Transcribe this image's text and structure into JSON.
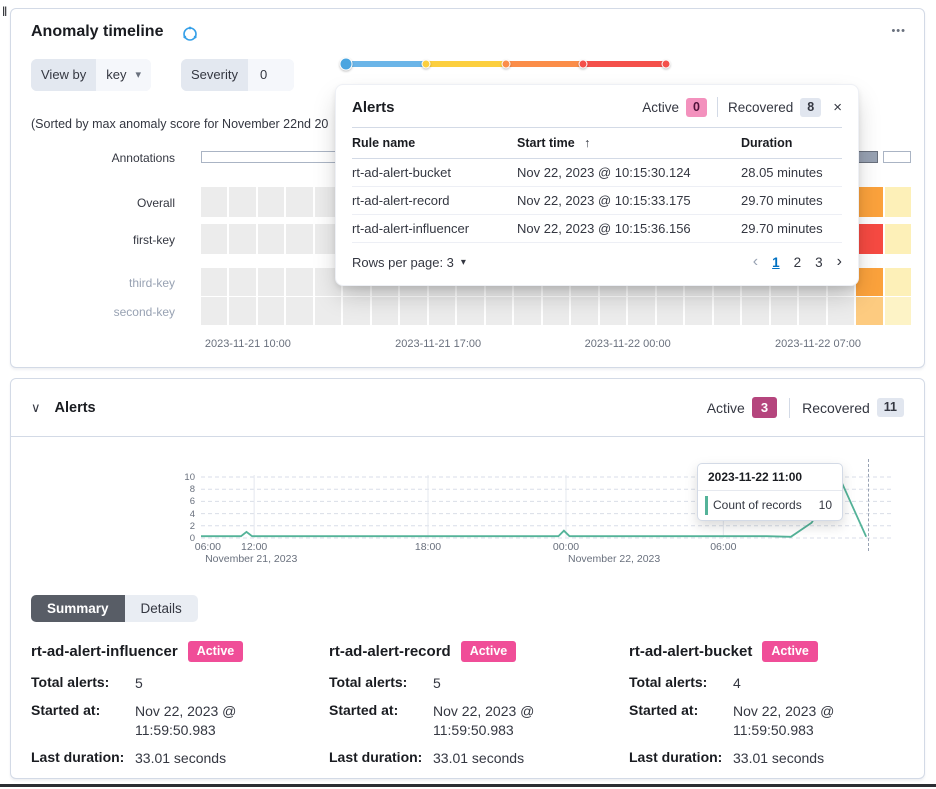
{
  "artifact": {
    "top_left_mark": "‖"
  },
  "colors": {
    "accent_badge": "#f04e98",
    "active_badge_dark": "#b5457d",
    "recovered_badge": "#e1e6ef",
    "link_blue": "#0071c2",
    "line_green": "#54b399",
    "marker_green": "#149177",
    "panel_border": "#d3dae6"
  },
  "icons": {
    "ellipsis": "•••",
    "chevron_down": "▾",
    "collapse_chevron": "∨",
    "close": "×",
    "sort_asc": "↑",
    "page_prev": "‹",
    "page_next": "›"
  },
  "anomaly_panel": {
    "title": "Anomaly timeline",
    "controls": {
      "view_by_label": "View by",
      "view_by_value": "key",
      "severity_label": "Severity",
      "severity_value": "0"
    },
    "sorted_note": "(Sorted by max anomaly score for November 22nd 20",
    "severity_scale": {
      "segments": [
        {
          "color": "#6bb5e8",
          "pct": 25
        },
        {
          "color": "#fccf3e",
          "pct": 25
        },
        {
          "color": "#fb8d49",
          "pct": 24
        },
        {
          "color": "#f4504b",
          "pct": 26
        }
      ],
      "dots": [
        {
          "pct": 0,
          "color": "#4aa5e0",
          "size": 13
        },
        {
          "pct": 25,
          "color": "#fccf3e",
          "size": 9
        },
        {
          "pct": 50,
          "color": "#fb8d49",
          "size": 9
        },
        {
          "pct": 74,
          "color": "#f4504b",
          "size": 9
        },
        {
          "pct": 100,
          "color": "#f4504b",
          "size": 9
        }
      ]
    },
    "swimlane": {
      "empty_cell_color": "#ececec",
      "cells_per_row": 25,
      "annotations_label": "Annotations",
      "annotation_markers": [
        {
          "type": "outline",
          "start": 0,
          "end": 91.5
        },
        {
          "type": "solid",
          "start": 92.3,
          "end": 95.4
        },
        {
          "type": "outline",
          "start": 96,
          "end": 100
        }
      ],
      "rows": [
        {
          "label": "Overall",
          "dim": false,
          "overrides": {
            "23": "#fba23c",
            "24": "#fdf0b8"
          }
        },
        {
          "label": "first-key",
          "dim": false,
          "overrides": {
            "23": "#f64a42",
            "24": "#fdf0b8"
          }
        },
        {
          "label": "third-key",
          "dim": true,
          "overrides": {
            "23": "#fba23c",
            "24": "#fdf0b8"
          }
        },
        {
          "label": "second-key",
          "dim": true,
          "overrides": {
            "23": "#fdcb80",
            "24": "#fdf3c6"
          }
        }
      ],
      "x_axis": [
        {
          "label": "2023-11-21 10:00",
          "pct": 6.6
        },
        {
          "label": "2023-11-21 17:00",
          "pct": 33.4
        },
        {
          "label": "2023-11-22 00:00",
          "pct": 60.1
        },
        {
          "label": "2023-11-22 07:00",
          "pct": 86.9
        }
      ]
    }
  },
  "alerts_popup": {
    "title": "Alerts",
    "active_label": "Active",
    "active_count": "0",
    "recovered_label": "Recovered",
    "recovered_count": "8",
    "table": {
      "headers": [
        "Rule name",
        "Start time",
        "Duration"
      ],
      "rows": [
        [
          "rt-ad-alert-bucket",
          "Nov 22, 2023 @ 10:15:30.124",
          "28.05 minutes"
        ],
        [
          "rt-ad-alert-record",
          "Nov 22, 2023 @ 10:15:33.175",
          "29.70 minutes"
        ],
        [
          "rt-ad-alert-influencer",
          "Nov 22, 2023 @ 10:15:36.156",
          "29.70 minutes"
        ]
      ]
    },
    "rows_per_page": "Rows per page: 3",
    "pagination": {
      "pages": [
        "1",
        "2",
        "3"
      ],
      "active": "1"
    }
  },
  "alerts_panel": {
    "title": "Alerts",
    "active_label": "Active",
    "active_count": "3",
    "recovered_label": "Recovered",
    "recovered_count": "11",
    "tabs": [
      {
        "label": "Summary",
        "active": true
      },
      {
        "label": "Details",
        "active": false
      }
    ],
    "tooltip": {
      "date": "2023-11-22 11:00",
      "series": "Count of records",
      "value": "10"
    },
    "cards": [
      {
        "name": "rt-ad-alert-influencer",
        "status": "Active",
        "total_label": "Total alerts:",
        "total": "5",
        "started_label": "Started at:",
        "started": "Nov 22, 2023 @ 11:59:50.983",
        "duration_label": "Last duration:",
        "duration": "33.01 seconds"
      },
      {
        "name": "rt-ad-alert-record",
        "status": "Active",
        "total_label": "Total alerts:",
        "total": "5",
        "started_label": "Started at:",
        "started": "Nov 22, 2023 @ 11:59:50.983",
        "duration_label": "Last duration:",
        "duration": "33.01 seconds"
      },
      {
        "name": "rt-ad-alert-bucket",
        "status": "Active",
        "total_label": "Total alerts:",
        "total": "4",
        "started_label": "Started at:",
        "started": "Nov 22, 2023 @ 11:59:50.983",
        "duration_label": "Last duration:",
        "duration": "33.01 seconds"
      }
    ]
  },
  "chart_data": {
    "type": "line",
    "title": "",
    "xlabel": "",
    "ylabel": "",
    "ylim": [
      0,
      10
    ],
    "grid": "dashed-horizontal",
    "legend": "none",
    "series": [
      {
        "name": "Count of records",
        "color": "#54b399",
        "points_pct": [
          [
            0,
            0.3
          ],
          [
            5.8,
            0.3
          ],
          [
            6.6,
            1
          ],
          [
            7.4,
            0.3
          ],
          [
            20,
            0.3
          ],
          [
            35,
            0.3
          ],
          [
            51.8,
            0.3
          ],
          [
            52.6,
            1.2
          ],
          [
            53.4,
            0.3
          ],
          [
            70,
            0.3
          ],
          [
            82,
            0.3
          ],
          [
            85.5,
            0.2
          ],
          [
            88.5,
            2.5
          ],
          [
            92.5,
            10
          ],
          [
            96.4,
            0.2
          ]
        ]
      }
    ],
    "samples": [
      {
        "time": "2023-11-21 06:00",
        "value": 0
      },
      {
        "time": "2023-11-21 12:00",
        "value": 1
      },
      {
        "time": "2023-11-21 18:00",
        "value": 0
      },
      {
        "time": "2023-11-22 00:00",
        "value": 1
      },
      {
        "time": "2023-11-22 06:00",
        "value": 0
      },
      {
        "time": "2023-11-22 10:00",
        "value": 0
      },
      {
        "time": "2023-11-22 11:00",
        "value": 10
      },
      {
        "time": "2023-11-22 11:30",
        "value": 0
      }
    ],
    "y_ticks": [
      10,
      8,
      6,
      4,
      2,
      0
    ],
    "x_ticks": [
      {
        "label": "06:00",
        "pct": 1
      },
      {
        "label": "12:00",
        "pct": 7.7
      },
      {
        "label": "18:00",
        "pct": 32.9
      },
      {
        "label": "00:00",
        "pct": 52.9
      },
      {
        "label": "06:00",
        "pct": 75.7
      }
    ],
    "x_date_labels": [
      {
        "label": "November 21, 2023",
        "pct": 0.3
      },
      {
        "label": "November 22, 2023",
        "pct": 52.9
      }
    ]
  }
}
